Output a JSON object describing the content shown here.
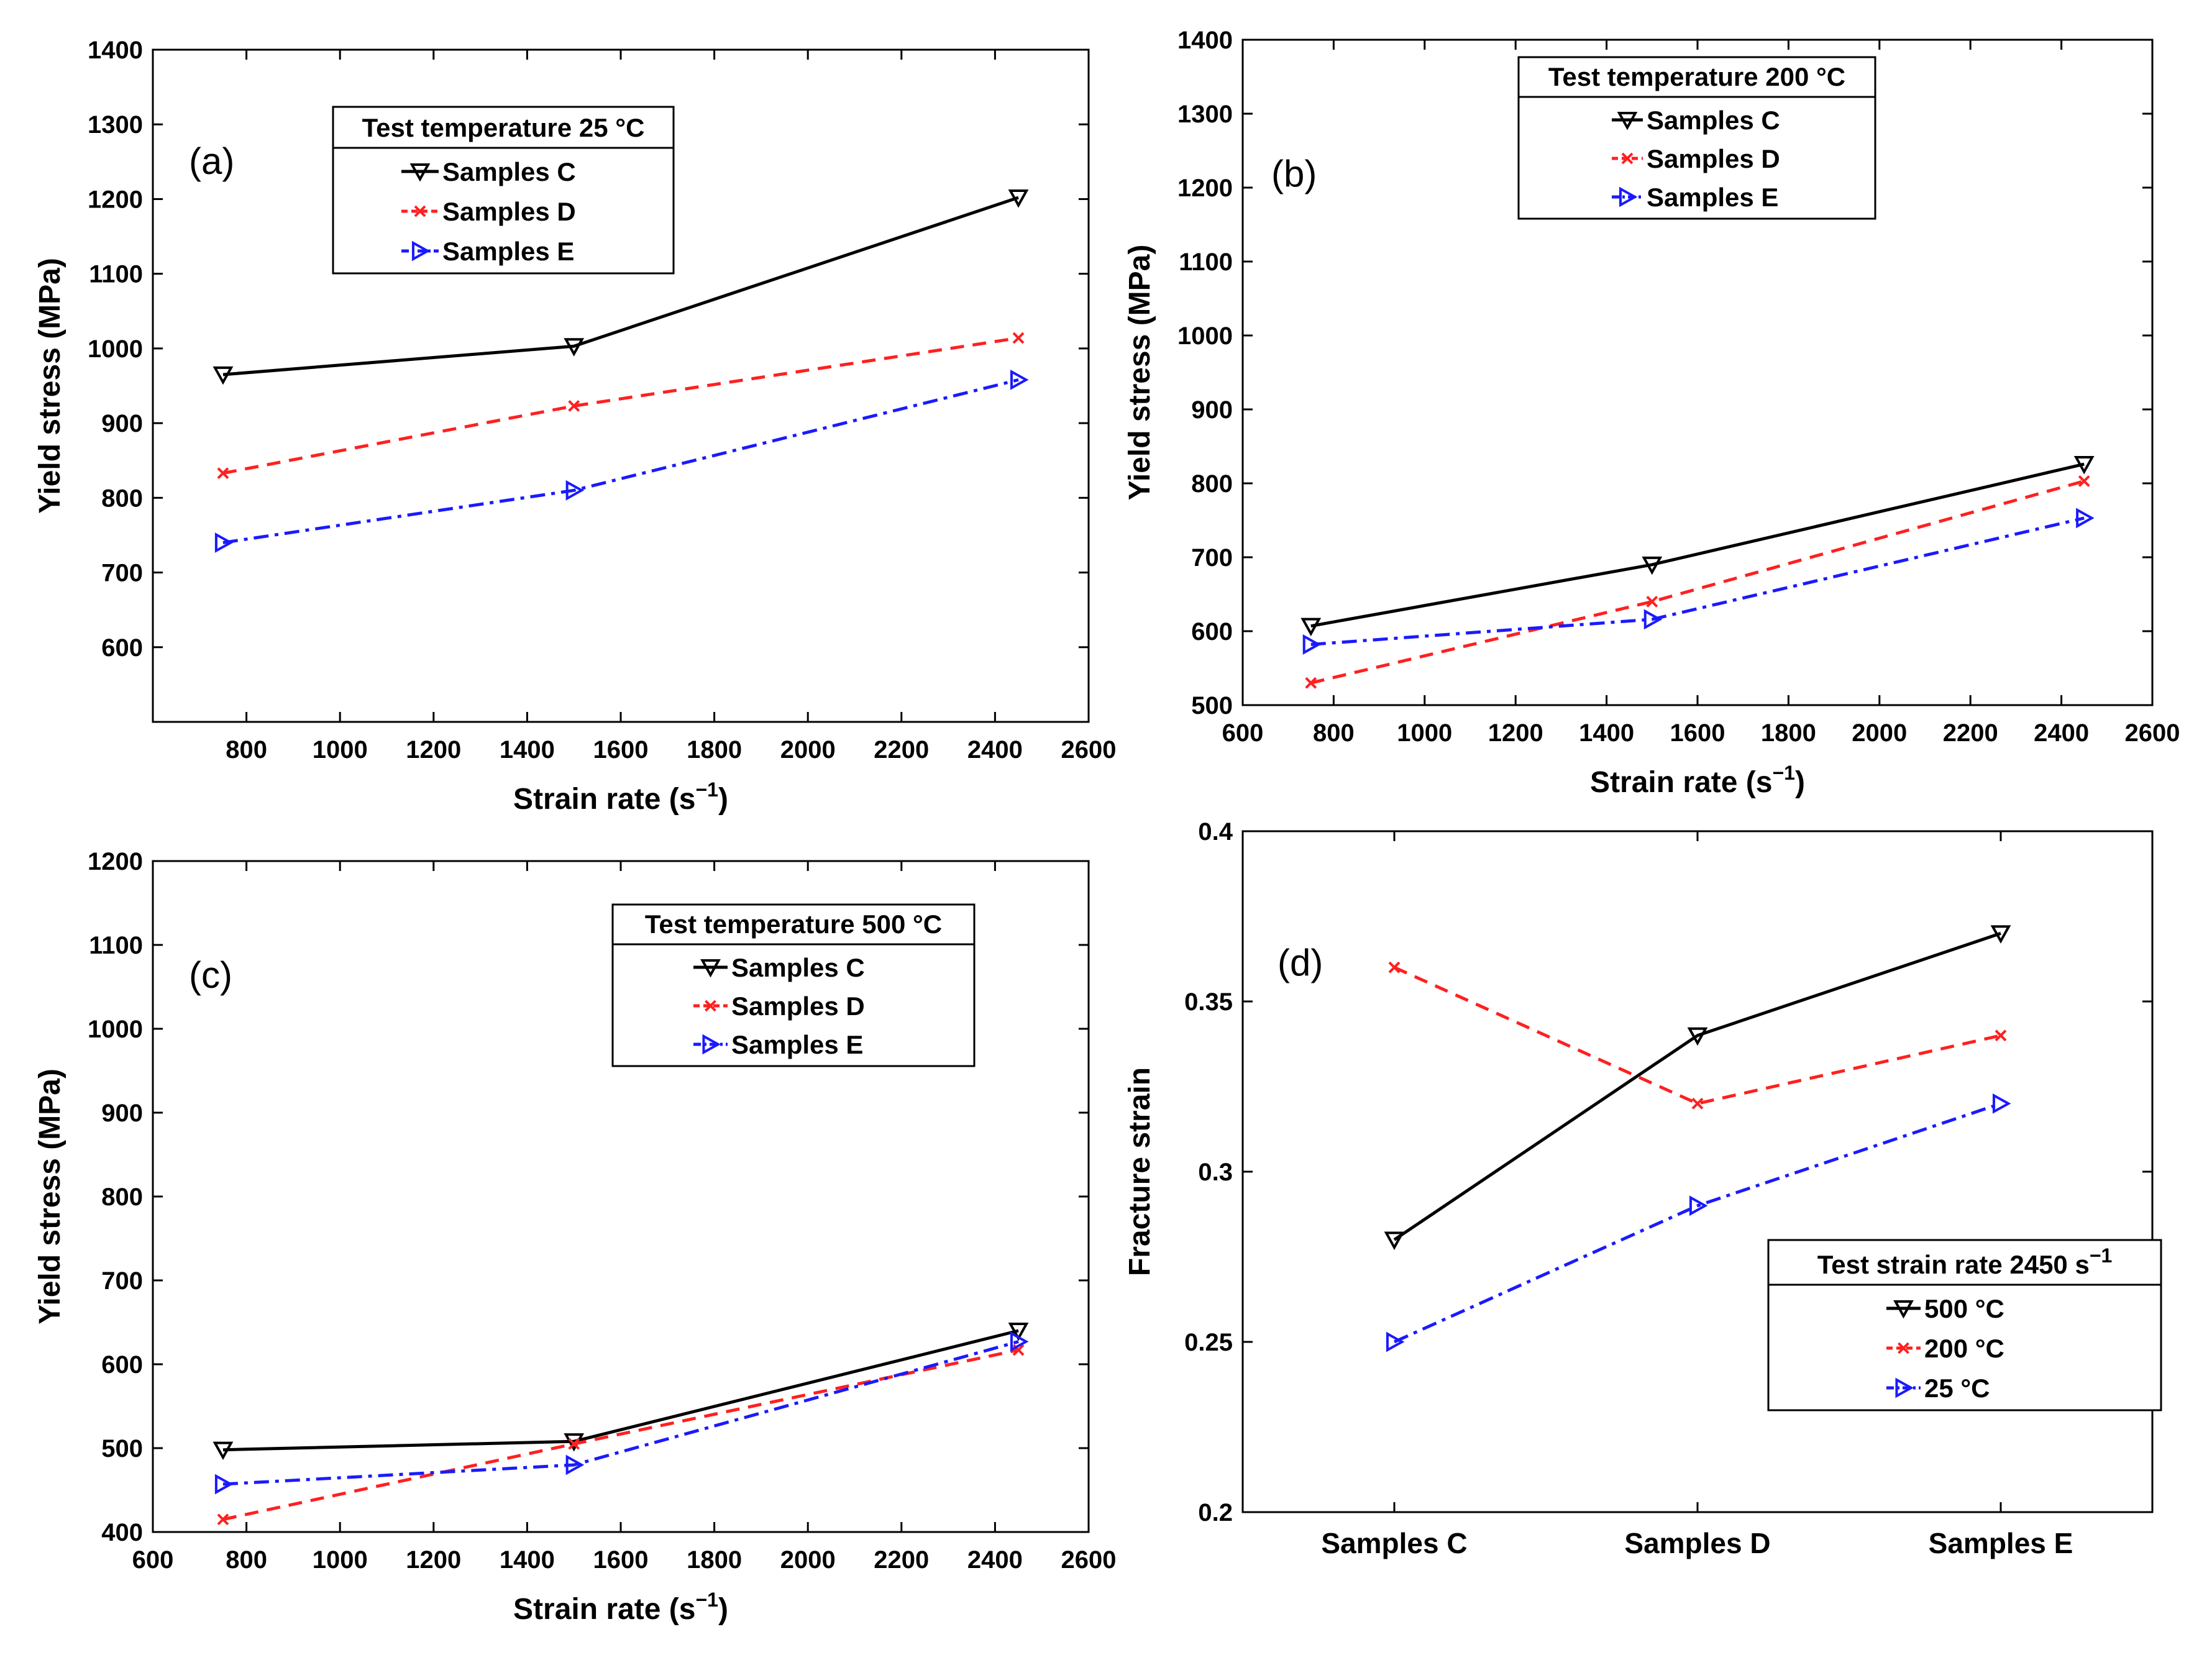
{
  "chart_data": [
    {
      "type": "line",
      "panel_label": "(a)",
      "legend_title": "Test temperature 25 °C",
      "legend_placement": "top-left",
      "xlabel": "Strain rate (s",
      "xlabel_sup": "−1",
      "xlabel_end": ")",
      "ylabel": "Yield stress (MPa)",
      "xlim": [
        600,
        2600
      ],
      "ylim": [
        500,
        1400
      ],
      "xticks": [
        "800",
        "1000",
        "1200",
        "1400",
        "1600",
        "1800",
        "2000",
        "2200",
        "2400",
        "2600"
      ],
      "yticks": [
        "600",
        "700",
        "800",
        "900",
        "1000",
        "1100",
        "1200",
        "1300",
        "1400"
      ],
      "x": [
        750,
        1500,
        2450
      ],
      "series": [
        {
          "name": "Samples C",
          "values": [
            965,
            1003,
            1202
          ],
          "color": "#000000"
        },
        {
          "name": "Samples D",
          "values": [
            833,
            923,
            1014
          ],
          "color": "#ff2020"
        },
        {
          "name": "Samples E",
          "values": [
            740,
            810,
            958
          ],
          "color": "#1a1aff"
        }
      ]
    },
    {
      "type": "line",
      "panel_label": "(b)",
      "legend_title": "Test temperature 200 °C",
      "legend_placement": "top-center",
      "xlabel": "Strain rate (s",
      "xlabel_sup": "−1",
      "xlabel_end": ")",
      "ylabel": "Yield stress (MPa)",
      "xlim": [
        600,
        2600
      ],
      "ylim": [
        500,
        1400
      ],
      "xticks": [
        "600",
        "800",
        "1000",
        "1200",
        "1400",
        "1600",
        "1800",
        "2000",
        "2200",
        "2400",
        "2600"
      ],
      "yticks": [
        "500",
        "600",
        "700",
        "800",
        "900",
        "1000",
        "1100",
        "1200",
        "1300",
        "1400"
      ],
      "x": [
        750,
        1500,
        2450
      ],
      "series": [
        {
          "name": "Samples C",
          "values": [
            607,
            690,
            826
          ],
          "color": "#000000"
        },
        {
          "name": "Samples D",
          "values": [
            530,
            640,
            803
          ],
          "color": "#ff2020"
        },
        {
          "name": "Samples E",
          "values": [
            582,
            616,
            753
          ],
          "color": "#1a1aff"
        }
      ]
    },
    {
      "type": "line",
      "panel_label": "(c)",
      "legend_title": "Test temperature 500 °C",
      "legend_placement": "top-right",
      "xlabel": "Strain rate (s",
      "xlabel_sup": "−1",
      "xlabel_end": ")",
      "ylabel": "Yield stress (MPa)",
      "xlim": [
        600,
        2600
      ],
      "ylim": [
        400,
        1200
      ],
      "xticks": [
        "600",
        "800",
        "1000",
        "1200",
        "1400",
        "1600",
        "1800",
        "2000",
        "2200",
        "2400",
        "2600"
      ],
      "yticks": [
        "400",
        "500",
        "600",
        "700",
        "800",
        "900",
        "1000",
        "1100",
        "1200"
      ],
      "x": [
        750,
        1500,
        2450
      ],
      "series": [
        {
          "name": "Samples C",
          "values": [
            498,
            508,
            640
          ],
          "color": "#000000"
        },
        {
          "name": "Samples D",
          "values": [
            415,
            505,
            617
          ],
          "color": "#ff2020"
        },
        {
          "name": "Samples E",
          "values": [
            457,
            480,
            627
          ],
          "color": "#1a1aff"
        }
      ]
    },
    {
      "type": "line",
      "panel_label": "(d)",
      "legend_title": "Test strain rate 2450 s",
      "legend_title_sup": "−1",
      "legend_placement": "bottom-right",
      "xlabel": "",
      "ylabel": "Fracture strain",
      "ylim": [
        0.2,
        0.4
      ],
      "categories": [
        "Samples C",
        "Samples D",
        "Samples E"
      ],
      "yticks": [
        "0.2",
        "0.25",
        "0.3",
        "0.35",
        "0.4"
      ],
      "series": [
        {
          "name": "500 °C",
          "values": [
            0.28,
            0.34,
            0.37
          ],
          "color": "#000000"
        },
        {
          "name": "200 °C",
          "values": [
            0.36,
            0.32,
            0.34
          ],
          "color": "#ff2020"
        },
        {
          "name": "25 °C",
          "values": [
            0.25,
            0.29,
            0.32
          ],
          "color": "#1a1aff"
        }
      ]
    }
  ]
}
